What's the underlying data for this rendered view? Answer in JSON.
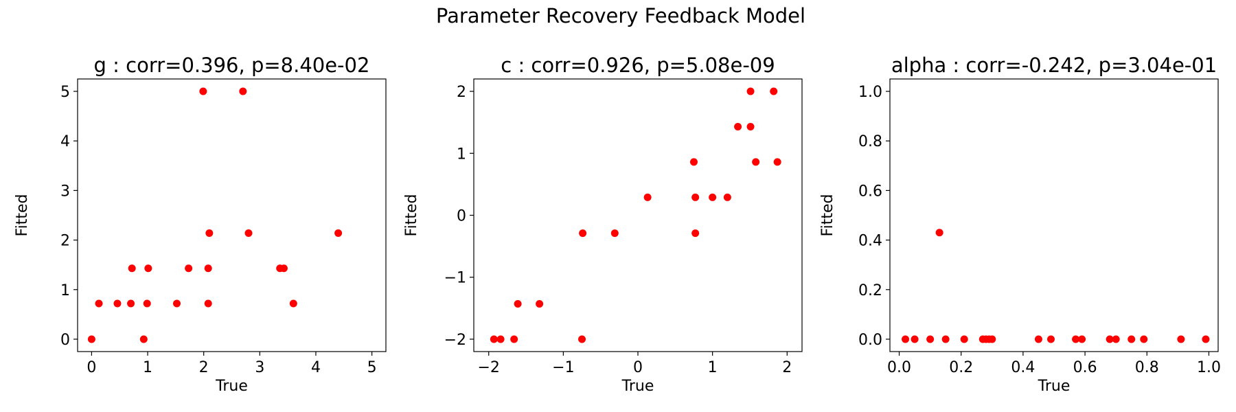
{
  "figure_title": "Parameter Recovery Feedback Model",
  "marker_color": "#ff0000",
  "chart_data": [
    {
      "type": "scatter",
      "title": "g : corr=0.396, p=8.40e-02",
      "xlabel": "True",
      "ylabel": "Fitted",
      "xlim": [
        -0.25,
        5.25
      ],
      "ylim": [
        -0.25,
        5.25
      ],
      "xticks": [
        0,
        1,
        2,
        3,
        4,
        5
      ],
      "xtick_labels": [
        "0",
        "1",
        "2",
        "3",
        "4",
        "5"
      ],
      "yticks": [
        0,
        1,
        2,
        3,
        4,
        5
      ],
      "ytick_labels": [
        "0",
        "1",
        "2",
        "3",
        "4",
        "5"
      ],
      "grid": false,
      "legend": "none",
      "points": [
        {
          "x": 0.0,
          "y": 0.0
        },
        {
          "x": 0.13,
          "y": 0.72
        },
        {
          "x": 0.46,
          "y": 0.72
        },
        {
          "x": 0.7,
          "y": 0.72
        },
        {
          "x": 0.72,
          "y": 1.43
        },
        {
          "x": 0.93,
          "y": 0.0
        },
        {
          "x": 0.99,
          "y": 0.72
        },
        {
          "x": 1.01,
          "y": 1.43
        },
        {
          "x": 1.52,
          "y": 0.72
        },
        {
          "x": 1.73,
          "y": 1.43
        },
        {
          "x": 1.99,
          "y": 5.0
        },
        {
          "x": 2.08,
          "y": 1.43
        },
        {
          "x": 2.08,
          "y": 0.72
        },
        {
          "x": 2.1,
          "y": 2.14
        },
        {
          "x": 2.7,
          "y": 5.0
        },
        {
          "x": 2.8,
          "y": 2.14
        },
        {
          "x": 3.36,
          "y": 1.43
        },
        {
          "x": 3.43,
          "y": 1.43
        },
        {
          "x": 3.6,
          "y": 0.72
        },
        {
          "x": 4.4,
          "y": 2.14
        }
      ]
    },
    {
      "type": "scatter",
      "title": "c : corr=0.926, p=5.08e-09",
      "xlabel": "True",
      "ylabel": "Fitted",
      "xlim": [
        -2.2,
        2.2
      ],
      "ylim": [
        -2.2,
        2.2
      ],
      "xticks": [
        -2,
        -1,
        0,
        1,
        2
      ],
      "xtick_labels": [
        "−2",
        "−1",
        "0",
        "1",
        "2"
      ],
      "yticks": [
        -2,
        -1,
        0,
        1,
        2
      ],
      "ytick_labels": [
        "−2",
        "−1",
        "0",
        "1",
        "2"
      ],
      "grid": false,
      "legend": "none",
      "points": [
        {
          "x": -1.93,
          "y": -2.0
        },
        {
          "x": -1.84,
          "y": -2.0
        },
        {
          "x": -1.66,
          "y": -2.0
        },
        {
          "x": -1.61,
          "y": -1.43
        },
        {
          "x": -1.32,
          "y": -1.43
        },
        {
          "x": -0.75,
          "y": -2.0
        },
        {
          "x": -0.74,
          "y": -0.29
        },
        {
          "x": -0.31,
          "y": -0.29
        },
        {
          "x": 0.13,
          "y": 0.29
        },
        {
          "x": 0.75,
          "y": 0.86
        },
        {
          "x": 0.77,
          "y": 0.29
        },
        {
          "x": 0.77,
          "y": -0.29
        },
        {
          "x": 1.0,
          "y": 0.29
        },
        {
          "x": 1.2,
          "y": 0.29
        },
        {
          "x": 1.34,
          "y": 1.43
        },
        {
          "x": 1.51,
          "y": 2.0
        },
        {
          "x": 1.51,
          "y": 1.43
        },
        {
          "x": 1.58,
          "y": 0.86
        },
        {
          "x": 1.82,
          "y": 2.0
        },
        {
          "x": 1.87,
          "y": 0.86
        }
      ]
    },
    {
      "type": "scatter",
      "title": "alpha : corr=-0.242, p=3.04e-01",
      "xlabel": "True",
      "ylabel": "Fitted",
      "xlim": [
        -0.03,
        1.03
      ],
      "ylim": [
        -0.05,
        1.05
      ],
      "xticks": [
        0.0,
        0.2,
        0.4,
        0.6,
        0.8,
        1.0
      ],
      "xtick_labels": [
        "0.0",
        "0.2",
        "0.4",
        "0.6",
        "0.8",
        "1.0"
      ],
      "yticks": [
        0.0,
        0.2,
        0.4,
        0.6,
        0.8,
        1.0
      ],
      "ytick_labels": [
        "0.0",
        "0.2",
        "0.4",
        "0.6",
        "0.8",
        "1.0"
      ],
      "grid": false,
      "legend": "none",
      "points": [
        {
          "x": 0.02,
          "y": 0.0
        },
        {
          "x": 0.05,
          "y": 0.0
        },
        {
          "x": 0.1,
          "y": 0.0
        },
        {
          "x": 0.13,
          "y": 0.43
        },
        {
          "x": 0.15,
          "y": 0.0
        },
        {
          "x": 0.21,
          "y": 0.0
        },
        {
          "x": 0.27,
          "y": 0.0
        },
        {
          "x": 0.28,
          "y": 0.0
        },
        {
          "x": 0.29,
          "y": 0.0
        },
        {
          "x": 0.3,
          "y": 0.0
        },
        {
          "x": 0.45,
          "y": 0.0
        },
        {
          "x": 0.49,
          "y": 0.0
        },
        {
          "x": 0.57,
          "y": 0.0
        },
        {
          "x": 0.59,
          "y": 0.0
        },
        {
          "x": 0.68,
          "y": 0.0
        },
        {
          "x": 0.7,
          "y": 0.0
        },
        {
          "x": 0.75,
          "y": 0.0
        },
        {
          "x": 0.79,
          "y": 0.0
        },
        {
          "x": 0.91,
          "y": 0.0
        },
        {
          "x": 0.99,
          "y": 0.0
        }
      ]
    }
  ]
}
